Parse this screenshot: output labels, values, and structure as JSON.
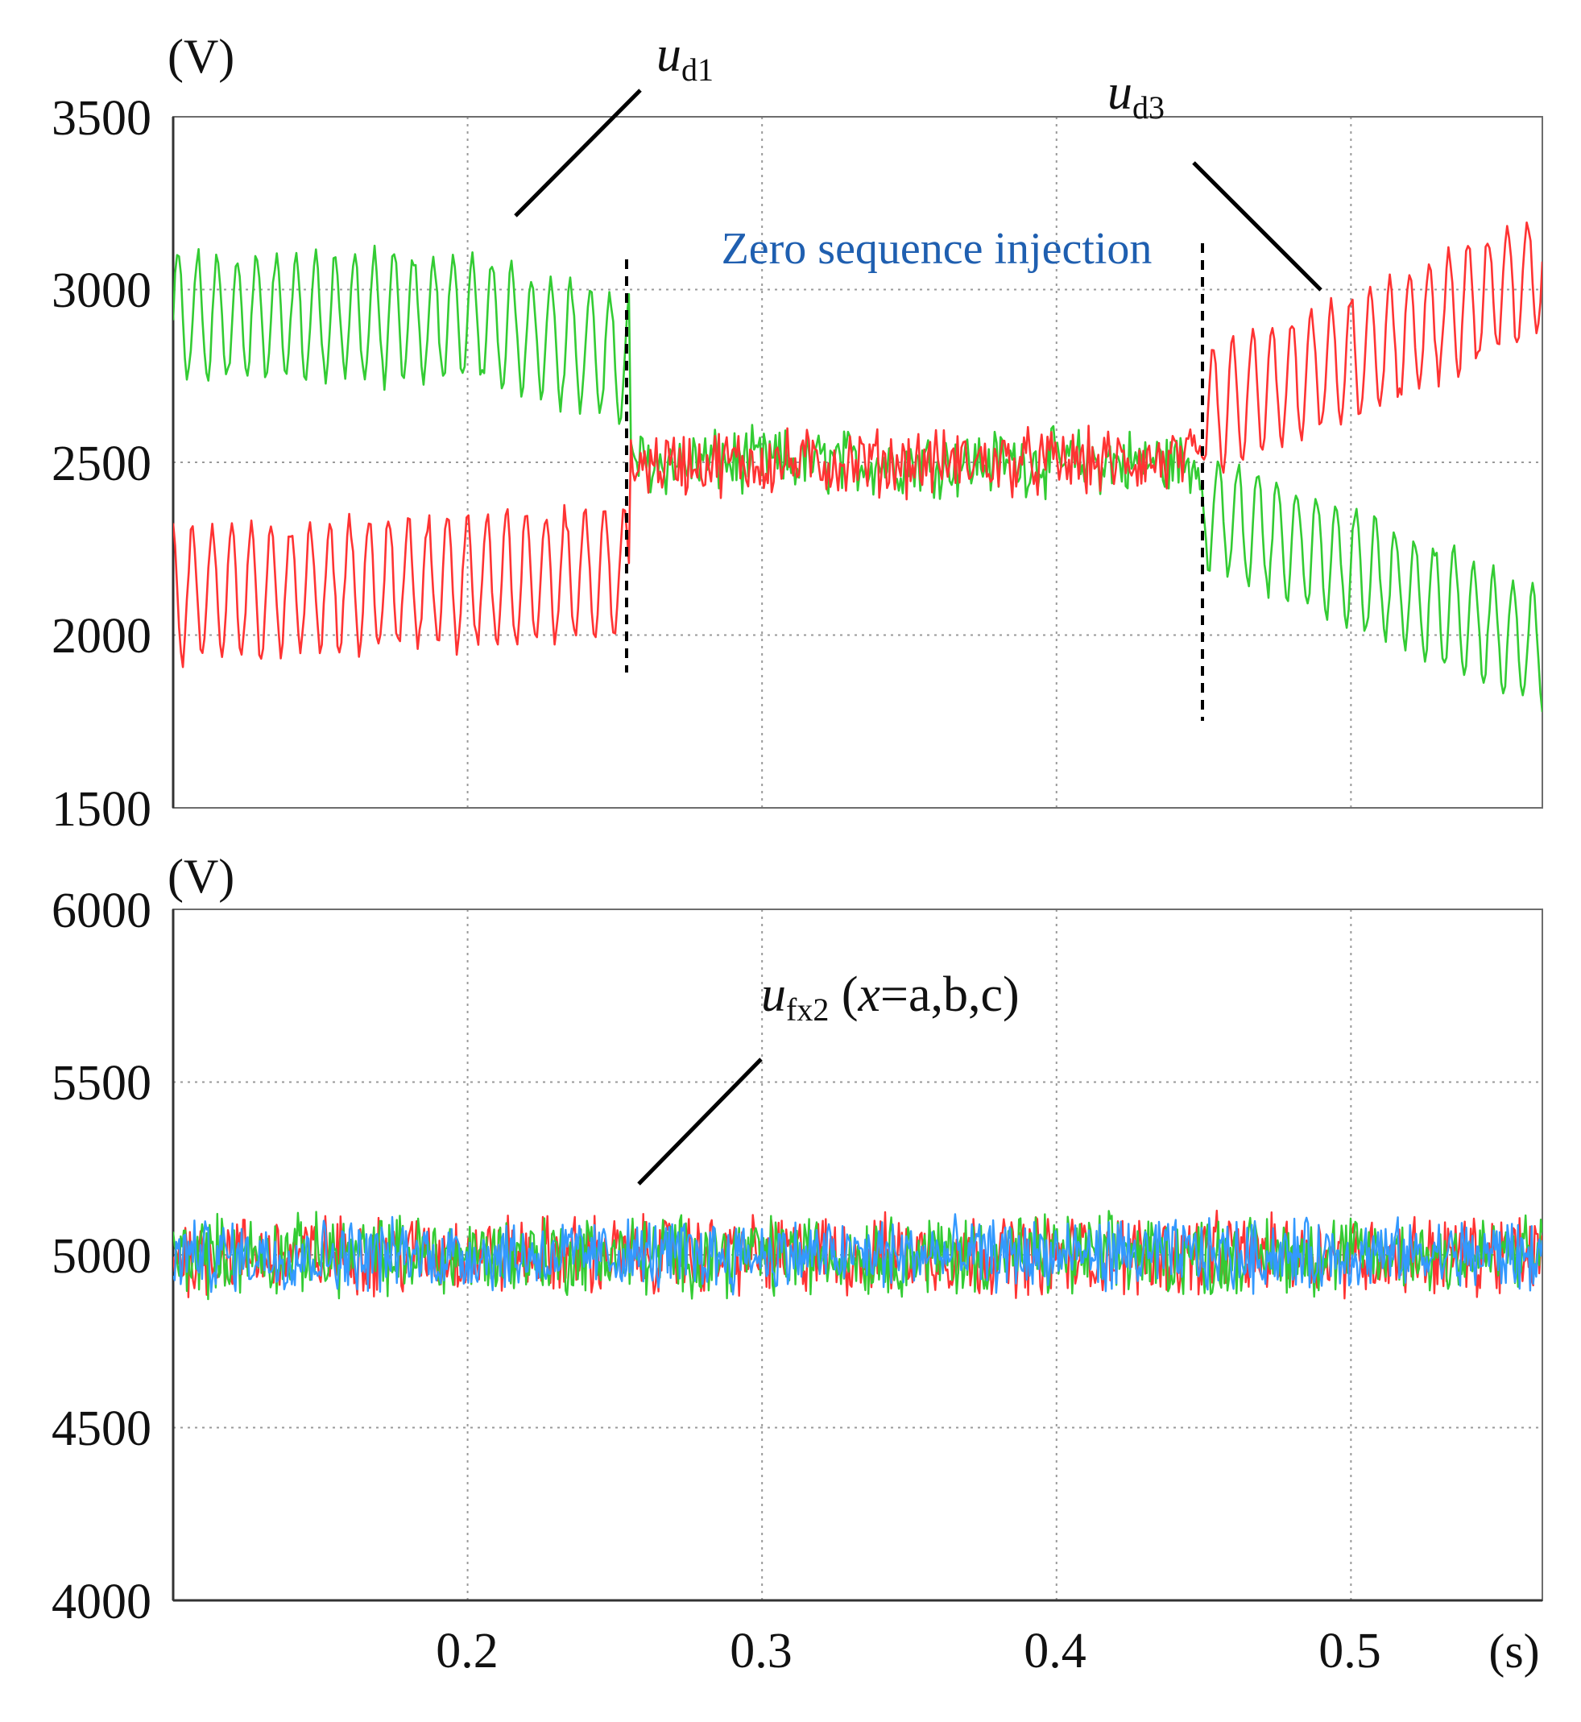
{
  "chart_data": [
    {
      "type": "line",
      "panel": "top",
      "ylabel": "(V)",
      "xlabel": "",
      "xlim": [
        0.1,
        0.565
      ],
      "ylim": [
        1500,
        3500
      ],
      "yticks": [
        "3500",
        "3000",
        "2500",
        "2000",
        "1500"
      ],
      "ytick_values": [
        3500,
        3000,
        2500,
        2000,
        1500
      ],
      "xtick_values": [
        0.2,
        0.3,
        0.4,
        0.5
      ],
      "grid": true,
      "annotation": "Zero sequence injection",
      "injection_interval": [
        0.255,
        0.45
      ],
      "series": [
        {
          "name": "u_d1",
          "label": "u",
          "sub": "d1",
          "color": "#33cc33",
          "segments": [
            {
              "x": [
                0.1,
                0.2,
                0.255
              ],
              "mean": [
                2920,
                2920,
                2800
              ],
              "amp": 190
            },
            {
              "x": [
                0.255,
                0.45
              ],
              "mean": [
                2500,
                2500
              ],
              "amp": 80,
              "noisy": true
            },
            {
              "x": [
                0.45,
                0.5,
                0.565
              ],
              "mean": [
                2370,
                2200,
                1960
              ],
              "amp": 180
            }
          ]
        },
        {
          "name": "u_d3",
          "label": "u",
          "sub": "d3",
          "color": "#ff3333",
          "segments": [
            {
              "x": [
                0.1,
                0.255
              ],
              "mean": [
                2120,
                2180
              ],
              "amp": 200
            },
            {
              "x": [
                0.255,
                0.45
              ],
              "mean": [
                2500,
                2500
              ],
              "amp": 80,
              "noisy": true
            },
            {
              "x": [
                0.45,
                0.5,
                0.565
              ],
              "mean": [
                2650,
                2800,
                3050
              ],
              "amp": 190
            }
          ]
        }
      ]
    },
    {
      "type": "line",
      "panel": "bottom",
      "ylabel": "(V)",
      "xlabel": "(s)",
      "xlim": [
        0.1,
        0.565
      ],
      "ylim": [
        4000,
        6000
      ],
      "yticks": [
        "6000",
        "5500",
        "5000",
        "4500",
        "4000"
      ],
      "ytick_values": [
        6000,
        5500,
        5000,
        4500,
        4000
      ],
      "xticks": [
        "0.2",
        "0.3",
        "0.4",
        "0.5"
      ],
      "xtick_values": [
        0.2,
        0.3,
        0.4,
        0.5
      ],
      "grid": true,
      "series_label": {
        "u": "u",
        "sub": "fx2",
        "rest": " (",
        "x": "x",
        "tail": "=a,b,c)"
      },
      "series": [
        {
          "name": "u_fa2",
          "color": "#ff3333",
          "mean": 5000,
          "amp": 95
        },
        {
          "name": "u_fb2",
          "color": "#33cc33",
          "mean": 5000,
          "amp": 95
        },
        {
          "name": "u_fc2",
          "color": "#3399ff",
          "mean": 5000,
          "amp": 85
        }
      ]
    }
  ]
}
